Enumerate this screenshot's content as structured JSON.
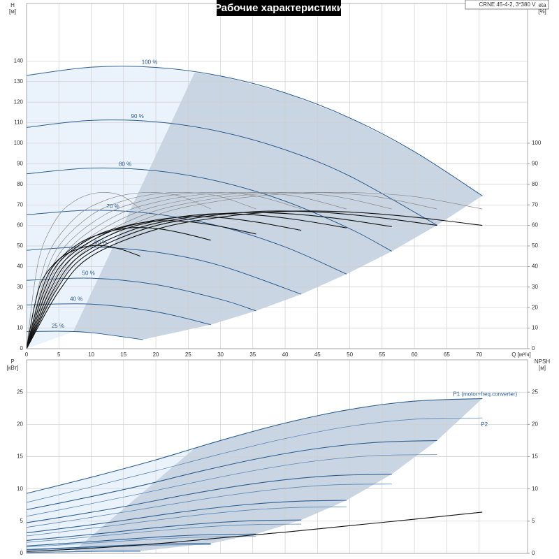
{
  "chart_data": [
    {
      "type": "line",
      "title": "Рабочие характеристики",
      "subtitle": "CRNE 45-4-2, 3*380 V",
      "ylabel": "H",
      "yunit": "[м]",
      "y2label": "eta",
      "y2unit": "[%]",
      "xlabel": "Q [м³/ч]",
      "xlim": [
        0,
        77.5
      ],
      "xticks": [
        0,
        5,
        10,
        15,
        20,
        25,
        30,
        35,
        40,
        45,
        50,
        55,
        60,
        65,
        70
      ],
      "ylim": [
        0,
        168
      ],
      "yticks": [
        0,
        10,
        20,
        30,
        40,
        50,
        60,
        70,
        80,
        90,
        100,
        110,
        120,
        130,
        140
      ],
      "y2lim": [
        0,
        168
      ],
      "y2ticks": [
        0,
        10,
        20,
        30,
        40,
        50,
        60,
        70,
        80,
        90,
        100
      ],
      "grid": true,
      "series": [
        {
          "name": "100 %",
          "color": "#2b5d91",
          "line_width": 1,
          "x": [
            0,
            10,
            20,
            30,
            40,
            50,
            60,
            70.5
          ],
          "values": [
            133,
            137.0,
            136.9,
            132.7,
            124.5,
            112.3,
            95.9,
            74.4
          ]
        },
        {
          "name": "90 %",
          "color": "#2b5d91",
          "line_width": 1,
          "x": [
            0,
            10,
            20,
            30,
            40,
            50,
            63.5
          ],
          "values": [
            107.7,
            111.1,
            110.4,
            105.6,
            96.8,
            84.0,
            60.1
          ]
        },
        {
          "name": "80 %",
          "color": "#2b5d91",
          "line_width": 1,
          "x": [
            0,
            10,
            20,
            30,
            40,
            50,
            56.5
          ],
          "values": [
            85.1,
            87.9,
            86.6,
            81.2,
            71.8,
            58.4,
            47.4
          ]
        },
        {
          "name": "70 %",
          "color": "#2b5d91",
          "line_width": 1,
          "x": [
            0,
            10,
            20,
            30,
            40,
            49.5
          ],
          "values": [
            65.2,
            67.4,
            65.5,
            59.5,
            49.5,
            36.3
          ]
        },
        {
          "name": "60 %",
          "color": "#2b5d91",
          "line_width": 1,
          "x": [
            0,
            10,
            20,
            30,
            42.5
          ],
          "values": [
            47.9,
            49.5,
            47.0,
            40.4,
            26.5
          ]
        },
        {
          "name": "50 %",
          "color": "#2b5d91",
          "line_width": 1,
          "x": [
            0,
            10,
            20,
            30,
            35.5
          ],
          "values": [
            33.3,
            34.3,
            31.2,
            24.0,
            18.4
          ]
        },
        {
          "name": "40 %",
          "color": "#2b5d91",
          "line_width": 1,
          "x": [
            0,
            10,
            20,
            28.5
          ],
          "values": [
            21.3,
            21.7,
            18.0,
            11.7
          ]
        },
        {
          "name": "25 %",
          "color": "#2b5d91",
          "line_width": 1,
          "x": [
            0,
            5,
            10,
            18
          ],
          "values": [
            8.3,
            8.5,
            7.8,
            4.4
          ]
        },
        {
          "color": "#8a8a8a",
          "line_width": 0.7,
          "axis": "y2",
          "x": [
            0,
            5,
            10,
            20,
            30,
            40,
            50,
            60,
            70.5
          ],
          "values": [
            0,
            32,
            50,
            65,
            72,
            75.3,
            76,
            74,
            68
          ]
        },
        {
          "color": "#8a8a8a",
          "line_width": 0.7,
          "axis": "y2",
          "x": [
            0,
            4.5,
            9,
            18,
            27,
            36,
            45,
            54,
            63.5
          ],
          "values": [
            0,
            32,
            50,
            65,
            72,
            75.3,
            76,
            74,
            68
          ]
        },
        {
          "color": "#8a8a8a",
          "line_width": 0.7,
          "axis": "y2",
          "x": [
            0,
            4,
            8,
            16,
            24,
            32,
            40,
            48,
            56.5
          ],
          "values": [
            0,
            32,
            50,
            65,
            72,
            75.3,
            76,
            74,
            68
          ]
        },
        {
          "color": "#8a8a8a",
          "line_width": 0.7,
          "axis": "y2",
          "x": [
            0,
            3.5,
            7,
            14,
            21,
            28,
            35,
            42,
            49.5
          ],
          "values": [
            0,
            32,
            50,
            65,
            72,
            75.3,
            76,
            74,
            68
          ]
        },
        {
          "color": "#8a8a8a",
          "line_width": 0.7,
          "axis": "y2",
          "x": [
            0,
            3,
            6,
            12,
            18,
            24,
            30,
            36,
            42.5
          ],
          "values": [
            0,
            32,
            50,
            65,
            72,
            75.3,
            76,
            74,
            68
          ]
        },
        {
          "color": "#8a8a8a",
          "line_width": 0.7,
          "axis": "y2",
          "x": [
            0,
            2.5,
            5,
            10,
            15,
            20,
            25,
            30,
            35.5
          ],
          "values": [
            0,
            32,
            50,
            65,
            72,
            75.3,
            76,
            74,
            68
          ]
        },
        {
          "color": "#8a8a8a",
          "line_width": 0.7,
          "axis": "y2",
          "x": [
            0,
            2,
            4,
            8,
            12,
            16,
            20,
            24,
            28.5
          ],
          "values": [
            0,
            32,
            50,
            65,
            72,
            75.3,
            76,
            74,
            68
          ]
        },
        {
          "color": "#8a8a8a",
          "line_width": 0.7,
          "axis": "y2",
          "x": [
            0,
            1.25,
            2.5,
            5,
            7.5,
            10,
            12.5,
            15,
            17.6
          ],
          "values": [
            0,
            32,
            50,
            65,
            72,
            75.3,
            76,
            74,
            68
          ]
        },
        {
          "color": "#111111",
          "line_width": 1.1,
          "axis": "y2",
          "x": [
            0,
            5,
            10,
            20,
            30,
            40,
            50,
            60,
            70.5
          ],
          "values": [
            0,
            28,
            45,
            58,
            64,
            66.8,
            66.5,
            64,
            60
          ]
        },
        {
          "color": "#111111",
          "line_width": 1.1,
          "axis": "y2",
          "x": [
            0,
            4.5,
            9,
            18,
            27,
            36,
            45,
            54,
            63.5
          ],
          "values": [
            0,
            28,
            45,
            58,
            64,
            66.8,
            66.5,
            64,
            60
          ]
        },
        {
          "color": "#111111",
          "line_width": 1.1,
          "axis": "y2",
          "x": [
            0,
            4,
            8,
            16,
            24,
            32,
            40,
            48,
            56.5
          ],
          "values": [
            0,
            27.7,
            44.6,
            57.4,
            63.4,
            66.1,
            65.8,
            63.4,
            59.4
          ]
        },
        {
          "color": "#111111",
          "line_width": 1.1,
          "axis": "y2",
          "x": [
            0,
            3.5,
            7,
            14,
            21,
            28,
            35,
            42,
            49.5
          ],
          "values": [
            0,
            27.4,
            44.1,
            56.8,
            62.7,
            65.5,
            65.2,
            62.7,
            58.8
          ]
        },
        {
          "color": "#111111",
          "line_width": 1.1,
          "axis": "y2",
          "x": [
            0,
            3,
            6,
            12,
            18,
            24,
            30,
            36,
            42.5
          ],
          "values": [
            0,
            26.9,
            43.2,
            55.7,
            61.4,
            64.1,
            63.8,
            61.4,
            57.6
          ]
        },
        {
          "color": "#111111",
          "line_width": 1.1,
          "axis": "y2",
          "x": [
            0,
            2.5,
            5,
            10,
            15,
            20,
            25,
            30,
            35.5
          ],
          "values": [
            0,
            26.0,
            41.9,
            53.9,
            59.5,
            62.1,
            61.8,
            59.5,
            55.8
          ]
        },
        {
          "color": "#111111",
          "line_width": 1.1,
          "axis": "y2",
          "x": [
            0,
            2,
            4,
            8,
            12,
            16,
            20,
            24,
            28.5
          ],
          "values": [
            0,
            24.6,
            39.6,
            51.0,
            56.3,
            58.8,
            58.5,
            56.3,
            52.8
          ]
        },
        {
          "color": "#111111",
          "line_width": 1.1,
          "axis": "y2",
          "x": [
            0,
            1.25,
            2.5,
            5,
            7.5,
            10,
            12.5,
            15,
            17.6
          ],
          "values": [
            0,
            21,
            33.8,
            43.5,
            48,
            50.1,
            49.9,
            48,
            45
          ]
        }
      ]
    },
    {
      "type": "line",
      "ylabel": "P",
      "yunit": "[кВт]",
      "y2label": "NPSH",
      "y2unit": "[м]",
      "xlim": [
        0,
        77.5
      ],
      "ylim": [
        0,
        30
      ],
      "yticks": [
        0,
        5,
        10,
        15,
        20,
        25
      ],
      "y2lim": [
        0,
        30
      ],
      "y2ticks": [
        0,
        5,
        10,
        15,
        20,
        25
      ],
      "grid": true,
      "series": [
        {
          "name": "P1 (motor+freq.converter)",
          "color": "#2b5d91",
          "line_width": 1.1,
          "x": [
            0,
            10,
            20,
            30,
            40,
            50,
            60,
            70.5
          ],
          "values": [
            9.3,
            11.8,
            14.5,
            17.5,
            20.2,
            22.3,
            23.6,
            24.0
          ]
        },
        {
          "color": "#2b5d91",
          "line_width": 1.1,
          "x": [
            0,
            9,
            18,
            27,
            36,
            45,
            54,
            63.5
          ],
          "values": [
            6.78,
            8.6,
            10.57,
            12.76,
            14.73,
            16.26,
            17.2,
            17.5
          ]
        },
        {
          "color": "#2b5d91",
          "line_width": 1.1,
          "x": [
            0,
            8,
            16,
            24,
            32,
            40,
            48,
            56.5
          ],
          "values": [
            4.76,
            6.04,
            7.42,
            8.96,
            10.34,
            11.42,
            12.08,
            12.29
          ]
        },
        {
          "color": "#2b5d91",
          "line_width": 1.1,
          "x": [
            0,
            7,
            14,
            21,
            28,
            35,
            42,
            49.5
          ],
          "values": [
            3.19,
            4.05,
            4.97,
            6.0,
            6.93,
            7.65,
            8.09,
            8.23
          ]
        },
        {
          "color": "#2b5d91",
          "line_width": 1.1,
          "x": [
            0,
            6,
            12,
            18,
            24,
            30,
            36,
            42.5
          ],
          "values": [
            2.01,
            2.55,
            3.13,
            3.78,
            4.36,
            4.82,
            5.1,
            5.18
          ]
        },
        {
          "color": "#2b5d91",
          "line_width": 1.1,
          "x": [
            0,
            5,
            10,
            15,
            20,
            25,
            30,
            35.5
          ],
          "values": [
            1.16,
            1.48,
            1.81,
            2.19,
            2.53,
            2.79,
            2.95,
            3.0
          ]
        },
        {
          "color": "#2b5d91",
          "line_width": 1.1,
          "x": [
            0,
            4,
            8,
            12,
            16,
            20,
            24,
            28.5
          ],
          "values": [
            0.6,
            0.76,
            0.93,
            1.12,
            1.29,
            1.43,
            1.51,
            1.54
          ]
        },
        {
          "color": "#2b5d91",
          "line_width": 1.1,
          "x": [
            0,
            2.5,
            5,
            7.5,
            10,
            12.5,
            15,
            17.6
          ],
          "values": [
            0.15,
            0.18,
            0.23,
            0.27,
            0.32,
            0.35,
            0.37,
            0.37
          ]
        },
        {
          "name": "P2",
          "color": "#5b87b8",
          "line_width": 0.8,
          "x": [
            0,
            10,
            20,
            30,
            40,
            50,
            60,
            70.5
          ],
          "values": [
            7.9,
            10.3,
            12.8,
            15.4,
            17.8,
            19.7,
            20.8,
            21.0
          ]
        },
        {
          "color": "#5b87b8",
          "line_width": 0.8,
          "x": [
            0,
            9,
            18,
            27,
            36,
            45,
            54,
            63.5
          ],
          "values": [
            5.76,
            7.51,
            9.33,
            11.23,
            12.98,
            14.36,
            15.16,
            15.31
          ]
        },
        {
          "color": "#5b87b8",
          "line_width": 0.8,
          "x": [
            0,
            8,
            16,
            24,
            32,
            40,
            48,
            56.5
          ],
          "values": [
            4.04,
            5.27,
            6.55,
            7.88,
            9.11,
            10.09,
            10.65,
            10.75
          ]
        },
        {
          "color": "#5b87b8",
          "line_width": 0.8,
          "x": [
            0,
            7,
            14,
            21,
            28,
            35,
            42,
            49.5
          ],
          "values": [
            2.71,
            3.53,
            4.39,
            5.28,
            6.11,
            6.76,
            7.13,
            7.2
          ]
        },
        {
          "color": "#5b87b8",
          "line_width": 0.8,
          "x": [
            0,
            6,
            12,
            18,
            24,
            30,
            36,
            42.5
          ],
          "values": [
            1.71,
            2.22,
            2.76,
            3.33,
            3.84,
            4.26,
            4.49,
            4.54
          ]
        },
        {
          "color": "#5b87b8",
          "line_width": 0.8,
          "x": [
            0,
            5,
            10,
            15,
            20,
            25,
            30,
            35.5
          ],
          "values": [
            0.99,
            1.29,
            1.6,
            1.93,
            2.23,
            2.46,
            2.6,
            2.63
          ]
        },
        {
          "color": "#5b87b8",
          "line_width": 0.8,
          "x": [
            0,
            4,
            8,
            12,
            16,
            20,
            24,
            28.5
          ],
          "values": [
            0.51,
            0.66,
            0.82,
            0.99,
            1.14,
            1.26,
            1.33,
            1.34
          ]
        },
        {
          "color": "#5b87b8",
          "line_width": 0.8,
          "x": [
            0,
            2.5,
            5,
            7.5,
            10,
            12.5,
            15,
            17.6
          ],
          "values": [
            0.12,
            0.16,
            0.2,
            0.24,
            0.28,
            0.31,
            0.32,
            0.33
          ]
        },
        {
          "color": "#111111",
          "line_width": 1.1,
          "axis": "y2",
          "x": [
            0,
            10,
            20,
            30,
            40,
            50,
            60,
            70.5
          ],
          "values": [
            0.3,
            0.8,
            1.5,
            2.4,
            3.3,
            4.3,
            5.3,
            6.4
          ]
        }
      ]
    }
  ]
}
